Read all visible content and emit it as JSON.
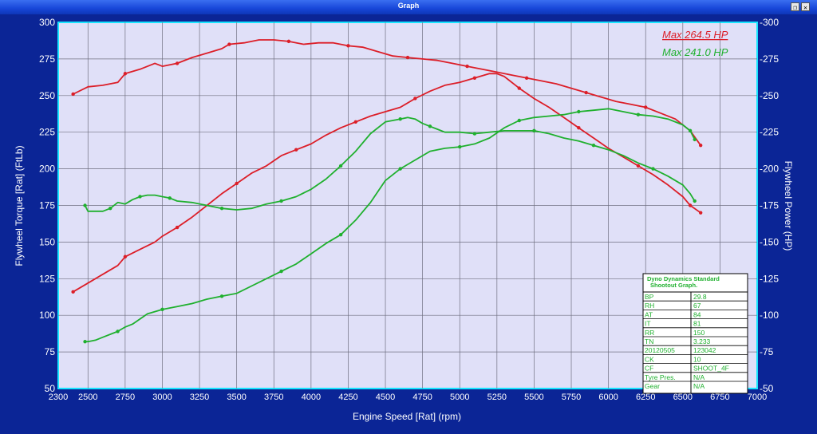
{
  "window": {
    "title": "Graph",
    "restore_icon": "restore-icon",
    "close_icon": "close-icon"
  },
  "colors": {
    "frame": "#0b2596",
    "plot_bg": "#e0e0f8",
    "plot_border": "#19e5ff",
    "grid": "#6f6f80",
    "torque": "#dc1e28",
    "power": "#1fb02e"
  },
  "chart_data": {
    "type": "line",
    "xlabel": "Engine Speed [Rat] (rpm)",
    "ylabel_left": "Flywheel Torque [Rat] (FtLb)",
    "ylabel_right": "Flywheel Power (HP)",
    "xlim": [
      2300,
      7000
    ],
    "ylim": [
      50,
      300
    ],
    "x_ticks": [
      "2300",
      "2500",
      "2750",
      "3000",
      "3250",
      "3500",
      "3750",
      "4000",
      "4250",
      "4500",
      "4750",
      "5000",
      "5250",
      "5500",
      "5750",
      "6000",
      "6250",
      "6500",
      "6750",
      "7000"
    ],
    "y_ticks_left": [
      "50",
      "75",
      "100",
      "125",
      "150",
      "175",
      "200",
      "225",
      "250",
      "275",
      "300"
    ],
    "y_ticks_right": [
      "-50",
      "-75",
      "-100",
      "-125",
      "-150",
      "-175",
      "-200",
      "-225",
      "-250",
      "-275",
      "-300"
    ],
    "grid": true,
    "legend_position": "top-right",
    "max_labels": [
      {
        "text": "Max 264.5 HP",
        "color": "#dc1e28"
      },
      {
        "text": "Max 241.0 HP",
        "color": "#1fb02e"
      }
    ],
    "series": [
      {
        "color": "#dc1e28",
        "kind": "torque",
        "x": [
          2400,
          2500,
          2600,
          2700,
          2750,
          2850,
          2950,
          3000,
          3100,
          3200,
          3300,
          3400,
          3450,
          3550,
          3650,
          3750,
          3850,
          3950,
          4050,
          4150,
          4250,
          4350,
          4450,
          4550,
          4650,
          4750,
          4850,
          4950,
          5050,
          5150,
          5250,
          5350,
          5450,
          5550,
          5650,
          5750,
          5850,
          5950,
          6050,
          6150,
          6250,
          6350,
          6450,
          6550,
          6620
        ],
        "y": [
          251,
          256,
          257,
          259,
          265,
          268,
          272,
          270,
          272,
          276,
          279,
          282,
          285,
          286,
          288,
          288,
          287,
          285,
          286,
          286,
          284,
          283,
          280,
          277,
          276,
          275,
          274,
          272,
          270,
          268,
          266,
          264,
          262,
          260,
          258,
          255,
          252,
          249,
          246,
          244,
          242,
          238,
          234,
          226,
          216
        ]
      },
      {
        "color": "#dc1e28",
        "kind": "power",
        "x": [
          2400,
          2500,
          2600,
          2700,
          2750,
          2850,
          2950,
          3000,
          3100,
          3200,
          3300,
          3400,
          3500,
          3600,
          3700,
          3800,
          3900,
          4000,
          4100,
          4200,
          4300,
          4400,
          4500,
          4600,
          4700,
          4800,
          4900,
          5000,
          5100,
          5200,
          5250,
          5300,
          5400,
          5500,
          5600,
          5700,
          5800,
          5900,
          6000,
          6100,
          6200,
          6300,
          6400,
          6500,
          6550,
          6620
        ],
        "y": [
          116,
          122,
          128,
          134,
          140,
          145,
          150,
          154,
          160,
          167,
          175,
          183,
          190,
          197,
          202,
          209,
          213,
          217,
          223,
          228,
          232,
          236,
          239,
          242,
          248,
          253,
          257,
          259,
          262,
          265,
          265,
          263,
          255,
          248,
          242,
          235,
          228,
          221,
          214,
          208,
          202,
          196,
          189,
          181,
          175,
          170
        ]
      },
      {
        "color": "#1fb02e",
        "kind": "torque",
        "x": [
          2480,
          2500,
          2550,
          2600,
          2650,
          2700,
          2750,
          2800,
          2850,
          2900,
          2950,
          3000,
          3050,
          3100,
          3200,
          3300,
          3400,
          3500,
          3600,
          3700,
          3800,
          3900,
          4000,
          4100,
          4200,
          4300,
          4400,
          4500,
          4600,
          4650,
          4700,
          4750,
          4800,
          4850,
          4900,
          5000,
          5100,
          5200,
          5300,
          5400,
          5500,
          5600,
          5700,
          5800,
          5900,
          6000,
          6100,
          6200,
          6300,
          6400,
          6500,
          6550,
          6580
        ],
        "y": [
          175,
          171,
          171,
          171,
          173,
          177,
          176,
          179,
          181,
          182,
          182,
          181,
          180,
          178,
          177,
          175,
          173,
          172,
          173,
          176,
          178,
          181,
          186,
          193,
          202,
          212,
          224,
          232,
          234,
          235,
          234,
          231,
          229,
          227,
          225,
          225,
          224,
          225,
          226,
          226,
          226,
          224,
          221,
          219,
          216,
          213,
          209,
          204,
          200,
          195,
          189,
          183,
          178
        ]
      },
      {
        "color": "#1fb02e",
        "kind": "power",
        "x": [
          2480,
          2500,
          2550,
          2600,
          2700,
          2750,
          2800,
          2900,
          3000,
          3100,
          3200,
          3300,
          3400,
          3500,
          3600,
          3700,
          3800,
          3900,
          4000,
          4100,
          4200,
          4300,
          4400,
          4500,
          4600,
          4700,
          4800,
          4900,
          5000,
          5100,
          5200,
          5300,
          5400,
          5500,
          5600,
          5700,
          5800,
          5900,
          6000,
          6100,
          6200,
          6300,
          6400,
          6500,
          6550,
          6580
        ],
        "y": [
          82,
          82,
          83,
          85,
          89,
          92,
          94,
          101,
          104,
          106,
          108,
          111,
          113,
          115,
          120,
          125,
          130,
          135,
          142,
          149,
          155,
          165,
          177,
          192,
          200,
          206,
          212,
          214,
          215,
          217,
          221,
          228,
          233,
          235,
          236,
          237,
          239,
          240,
          241,
          239,
          237,
          236,
          234,
          230,
          226,
          220
        ]
      }
    ],
    "info_table": {
      "title_line1": "Dyno Dynamics Standard",
      "title_line2": "Shootout Graph.",
      "rows": [
        [
          "BP",
          "29.8"
        ],
        [
          "RH",
          "67"
        ],
        [
          "AT",
          "84"
        ],
        [
          "IT",
          "81"
        ],
        [
          "RR",
          "150"
        ],
        [
          "TN",
          "3.233"
        ],
        [
          "20120505",
          "123042"
        ],
        [
          "CK",
          "10"
        ],
        [
          "CF",
          "SHOOT_4F"
        ],
        [
          "Tyre Pres.",
          "N/A"
        ],
        [
          "Gear",
          "N/A"
        ]
      ]
    }
  }
}
